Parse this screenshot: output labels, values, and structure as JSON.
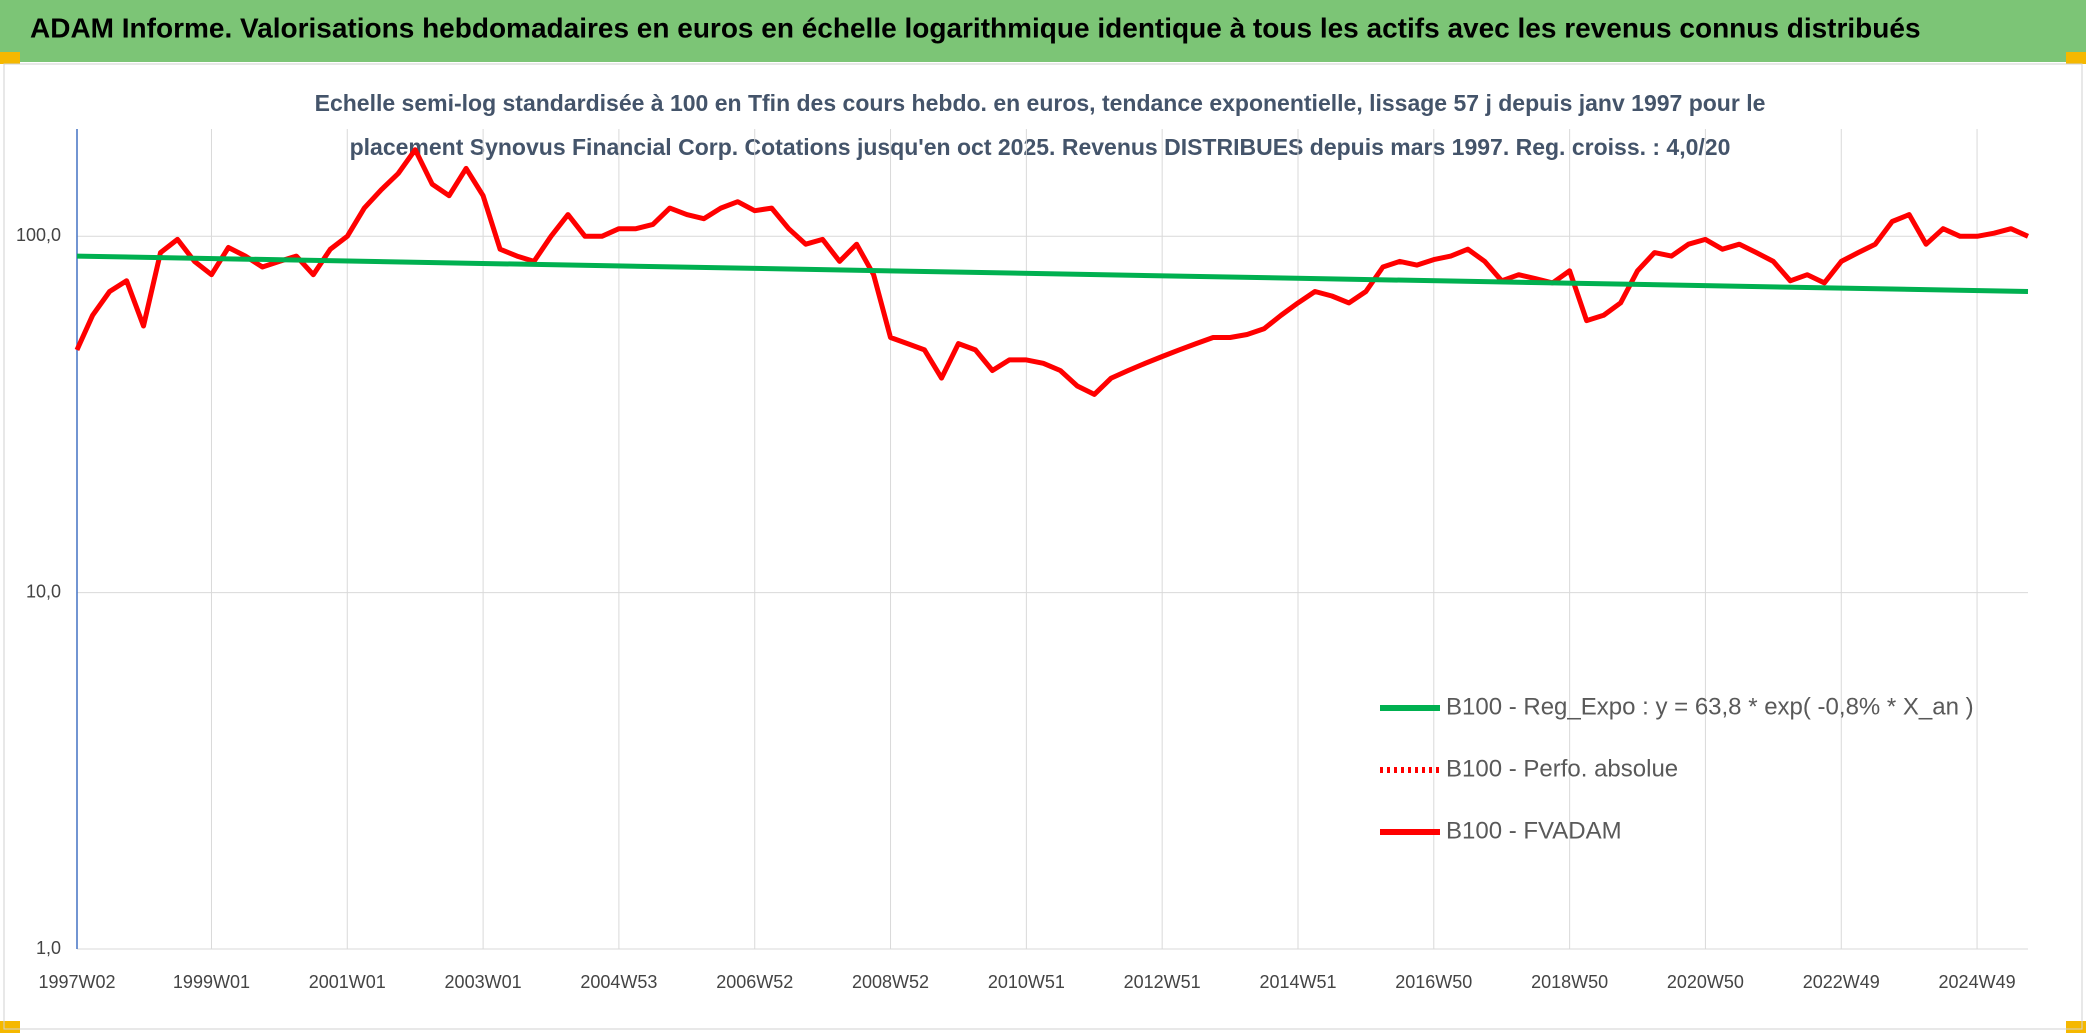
{
  "header": {
    "title": "ADAM Informe. Valorisations hebdomadaires en euros en échelle logarithmique identique à tous les actifs avec les revenus connus distribués"
  },
  "chart_data": {
    "type": "line",
    "subtitle": [
      "Echelle semi-log standardisée à 100 en Tfin des cours hebdo. en euros, tendance exponentielle, lissage 57 j depuis janv 1997 pour le",
      "placement Synovus Financial Corp. Cotations jusqu'en oct 2025. Revenus DISTRIBUES depuis mars 1997. Reg. croiss. : 4,0/20"
    ],
    "log_scale": true,
    "grid": true,
    "legend": "lower right",
    "xlim": [
      1997.02,
      2025.75
    ],
    "ylim": [
      1,
      200
    ],
    "yticks": [
      {
        "value": 1,
        "label": "1,0"
      },
      {
        "value": 10,
        "label": "10,0"
      },
      {
        "value": 100,
        "label": "100,0"
      }
    ],
    "xticks": [
      {
        "value": 1997.02,
        "label": "1997W02"
      },
      {
        "value": 1999.0,
        "label": "1999W01"
      },
      {
        "value": 2001.0,
        "label": "2001W01"
      },
      {
        "value": 2003.0,
        "label": "2003W01"
      },
      {
        "value": 2005.0,
        "label": "2004W53"
      },
      {
        "value": 2007.0,
        "label": "2006W52"
      },
      {
        "value": 2009.0,
        "label": "2008W52"
      },
      {
        "value": 2011.0,
        "label": "2010W51"
      },
      {
        "value": 2013.0,
        "label": "2012W51"
      },
      {
        "value": 2015.0,
        "label": "2014W51"
      },
      {
        "value": 2017.0,
        "label": "2016W50"
      },
      {
        "value": 2019.0,
        "label": "2018W50"
      },
      {
        "value": 2021.0,
        "label": "2020W50"
      },
      {
        "value": 2023.0,
        "label": "2022W49"
      },
      {
        "value": 2025.0,
        "label": "2024W49"
      }
    ],
    "series": [
      {
        "name": "B100 - Reg_Expo : y = 63,8 * exp( -0,8% *  X_an )",
        "color": "#00b050",
        "style": "solid",
        "x": [
          1997.02,
          2025.75
        ],
        "values": [
          88,
          70
        ]
      },
      {
        "name": "B100 - Perfo. absolue",
        "color": "#ff0000",
        "style": "dotted",
        "x": [
          1997.02,
          1997.25,
          1997.5,
          1997.75,
          1998.0,
          1998.25,
          1998.5,
          1998.75,
          1999.0,
          1999.25,
          1999.5,
          1999.75,
          2000.0,
          2000.25,
          2000.5,
          2000.75,
          2001.0,
          2001.25,
          2001.5,
          2001.75,
          2002.0,
          2002.25,
          2002.5,
          2002.75,
          2003.0,
          2003.25,
          2003.5,
          2003.75,
          2004.0,
          2004.25,
          2004.5,
          2004.75,
          2005.0,
          2005.25,
          2005.5,
          2005.75,
          2006.0,
          2006.25,
          2006.5,
          2006.75,
          2007.0,
          2007.25,
          2007.5,
          2007.75,
          2008.0,
          2008.25,
          2008.5,
          2008.75,
          2009.0,
          2009.25,
          2009.5,
          2009.75,
          2010.0,
          2010.25,
          2010.5,
          2010.75,
          2011.0,
          2011.25,
          2011.5,
          2011.75,
          2012.0,
          2012.25,
          2012.5,
          2012.75,
          2013.0,
          2013.25,
          2013.5,
          2013.75,
          2014.0,
          2014.25,
          2014.5,
          2014.75,
          2015.0,
          2015.25,
          2015.5,
          2015.75,
          2016.0,
          2016.25,
          2016.5,
          2016.75,
          2017.0,
          2017.25,
          2017.5,
          2017.75,
          2018.0,
          2018.25,
          2018.5,
          2018.75,
          2019.0,
          2019.25,
          2019.5,
          2019.75,
          2020.0,
          2020.25,
          2020.5,
          2020.75,
          2021.0,
          2021.25,
          2021.5,
          2021.75,
          2022.0,
          2022.25,
          2022.5,
          2022.75,
          2023.0,
          2023.25,
          2023.5,
          2023.75,
          2024.0,
          2024.25,
          2024.5,
          2024.75,
          2025.0,
          2025.25,
          2025.5,
          2025.75
        ],
        "values": [
          48,
          60,
          70,
          75,
          56,
          90,
          98,
          85,
          78,
          93,
          88,
          82,
          85,
          88,
          78,
          92,
          100,
          120,
          135,
          150,
          175,
          140,
          130,
          155,
          130,
          92,
          88,
          85,
          100,
          115,
          100,
          100,
          105,
          105,
          108,
          120,
          115,
          112,
          120,
          125,
          118,
          120,
          105,
          95,
          98,
          85,
          95,
          78,
          52,
          50,
          48,
          40,
          50,
          48,
          42,
          45,
          45,
          44,
          42,
          38,
          36,
          40,
          42,
          44,
          46,
          48,
          50,
          52,
          52,
          53,
          55,
          60,
          65,
          70,
          68,
          65,
          70,
          82,
          85,
          83,
          86,
          88,
          92,
          85,
          75,
          78,
          76,
          74,
          80,
          58,
          60,
          65,
          80,
          90,
          88,
          95,
          98,
          92,
          95,
          90,
          85,
          75,
          78,
          74,
          85,
          90,
          95,
          110,
          115,
          95,
          105,
          100,
          100,
          102,
          105,
          100
        ]
      },
      {
        "name": "B100 - FVADAM",
        "color": "#ff0000",
        "style": "solid",
        "x": [
          1997.02,
          1997.25,
          1997.5,
          1997.75,
          1998.0,
          1998.25,
          1998.5,
          1998.75,
          1999.0,
          1999.25,
          1999.5,
          1999.75,
          2000.0,
          2000.25,
          2000.5,
          2000.75,
          2001.0,
          2001.25,
          2001.5,
          2001.75,
          2002.0,
          2002.25,
          2002.5,
          2002.75,
          2003.0,
          2003.25,
          2003.5,
          2003.75,
          2004.0,
          2004.25,
          2004.5,
          2004.75,
          2005.0,
          2005.25,
          2005.5,
          2005.75,
          2006.0,
          2006.25,
          2006.5,
          2006.75,
          2007.0,
          2007.25,
          2007.5,
          2007.75,
          2008.0,
          2008.25,
          2008.5,
          2008.75,
          2009.0,
          2009.25,
          2009.5,
          2009.75,
          2010.0,
          2010.25,
          2010.5,
          2010.75,
          2011.0,
          2011.25,
          2011.5,
          2011.75,
          2012.0,
          2012.25,
          2012.5,
          2012.75,
          2013.0,
          2013.25,
          2013.5,
          2013.75,
          2014.0,
          2014.25,
          2014.5,
          2014.75,
          2015.0,
          2015.25,
          2015.5,
          2015.75,
          2016.0,
          2016.25,
          2016.5,
          2016.75,
          2017.0,
          2017.25,
          2017.5,
          2017.75,
          2018.0,
          2018.25,
          2018.5,
          2018.75,
          2019.0,
          2019.25,
          2019.5,
          2019.75,
          2020.0,
          2020.25,
          2020.5,
          2020.75,
          2021.0,
          2021.25,
          2021.5,
          2021.75,
          2022.0,
          2022.25,
          2022.5,
          2022.75,
          2023.0,
          2023.25,
          2023.5,
          2023.75,
          2024.0,
          2024.25,
          2024.5,
          2024.75,
          2025.0,
          2025.25,
          2025.5,
          2025.75
        ],
        "values": [
          48,
          60,
          70,
          75,
          56,
          90,
          98,
          85,
          78,
          93,
          88,
          82,
          85,
          88,
          78,
          92,
          100,
          120,
          135,
          150,
          175,
          140,
          130,
          155,
          130,
          92,
          88,
          85,
          100,
          115,
          100,
          100,
          105,
          105,
          108,
          120,
          115,
          112,
          120,
          125,
          118,
          120,
          105,
          95,
          98,
          85,
          95,
          78,
          52,
          50,
          48,
          40,
          50,
          48,
          42,
          45,
          45,
          44,
          42,
          38,
          36,
          40,
          42,
          44,
          46,
          48,
          50,
          52,
          52,
          53,
          55,
          60,
          65,
          70,
          68,
          65,
          70,
          82,
          85,
          83,
          86,
          88,
          92,
          85,
          75,
          78,
          76,
          74,
          80,
          58,
          60,
          65,
          80,
          90,
          88,
          95,
          98,
          92,
          95,
          90,
          85,
          75,
          78,
          74,
          85,
          90,
          95,
          110,
          115,
          95,
          105,
          100,
          100,
          102,
          105,
          100
        ]
      }
    ]
  }
}
